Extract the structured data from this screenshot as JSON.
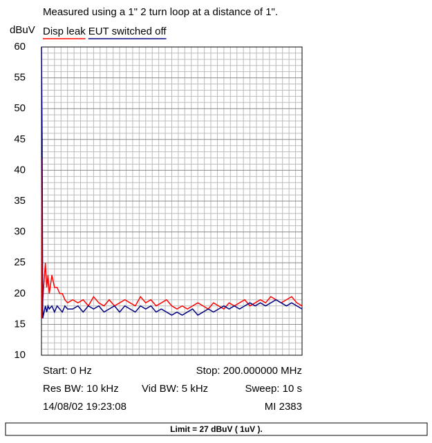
{
  "chart_data": {
    "type": "line",
    "title": "Measured using a 1\" 2 turn loop at a distance of 1\".",
    "y_label": "dBuV",
    "xlim": [
      0,
      200
    ],
    "ylim": [
      10,
      60
    ],
    "yticks": [
      10,
      15,
      20,
      25,
      30,
      35,
      40,
      45,
      50,
      55,
      60
    ],
    "grid": true,
    "x": [
      0,
      0.5,
      1,
      2,
      3,
      4,
      5,
      6,
      8,
      10,
      12,
      14,
      16,
      18,
      20,
      24,
      28,
      32,
      36,
      40,
      44,
      48,
      52,
      56,
      60,
      64,
      68,
      72,
      76,
      80,
      84,
      88,
      92,
      96,
      100,
      104,
      108,
      112,
      116,
      120,
      124,
      128,
      132,
      136,
      140,
      144,
      148,
      152,
      156,
      160,
      164,
      168,
      172,
      176,
      180,
      184,
      188,
      192,
      196,
      200
    ],
    "series": [
      {
        "name": "Disp leak",
        "color": "#ff0000",
        "values": [
          42,
          16,
          19,
          22,
          25,
          21,
          23,
          20,
          23,
          21,
          21,
          20,
          20,
          19,
          18.5,
          19,
          18.5,
          19,
          18,
          19.5,
          18.5,
          18,
          19,
          18,
          18.5,
          19,
          18.5,
          18,
          19.5,
          18.5,
          19,
          18,
          18.5,
          19,
          18,
          17.5,
          18,
          17.5,
          18,
          18.5,
          18,
          17.5,
          18.5,
          18,
          17.5,
          18.5,
          18,
          18.5,
          19,
          18,
          18.5,
          19,
          18.5,
          19.5,
          19,
          18.5,
          19,
          19.5,
          18.5,
          18
        ]
      },
      {
        "name": "EUT switched off",
        "color": "#000080",
        "values": [
          60,
          45,
          16,
          17,
          18,
          17,
          18,
          17.5,
          18,
          17,
          18,
          17.5,
          17,
          18,
          17.5,
          17.5,
          18,
          17,
          18,
          17.5,
          18,
          17,
          17.5,
          18,
          17,
          18,
          17.5,
          17,
          18,
          17.5,
          18,
          17,
          17.5,
          17,
          16.5,
          17,
          16.5,
          17,
          17.5,
          16.5,
          17,
          17.5,
          17,
          17.5,
          18,
          17.5,
          18,
          17.5,
          18,
          18.5,
          18,
          18.5,
          18,
          18.5,
          19,
          18.5,
          18,
          18.5,
          18,
          17.5
        ]
      }
    ]
  },
  "info": {
    "start": "Start: 0 Hz",
    "stop": "Stop: 200.000000 MHz",
    "res_bw": "Res BW: 10 kHz",
    "vid_bw": "Vid BW: 5 kHz",
    "sweep": "Sweep: 10 s",
    "timestamp": "14/08/02 19:23:08",
    "id": "MI 2383",
    "limit": "Limit = 27 dBuV ( 1uV )."
  }
}
